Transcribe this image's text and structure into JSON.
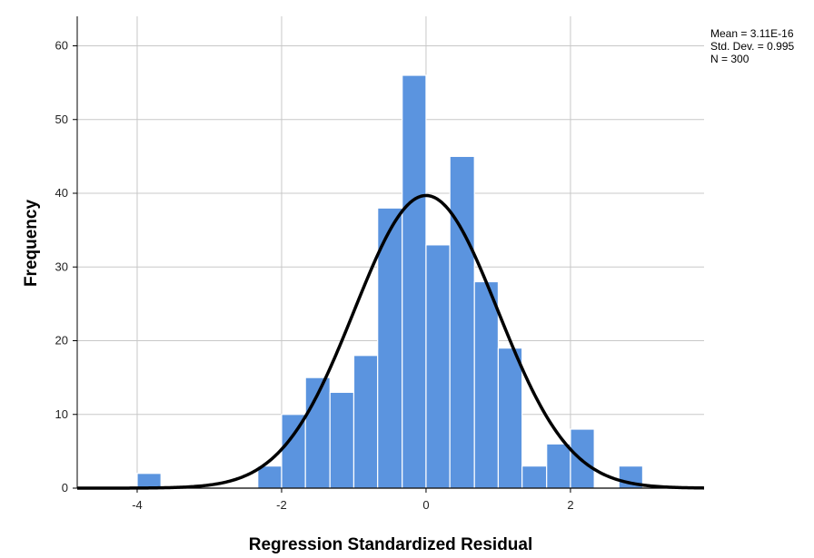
{
  "chart_data": {
    "type": "bar",
    "subtype": "histogram",
    "xlabel": "Regression Standardized Residual",
    "ylabel": "Frequency",
    "xlim": [
      -4.83,
      3.85
    ],
    "ylim": [
      0,
      64
    ],
    "x_ticks": [
      -4,
      -2,
      0,
      2
    ],
    "x_tick_labels": [
      "-4",
      "-2",
      "0",
      "2"
    ],
    "y_ticks": [
      0,
      10,
      20,
      30,
      40,
      50,
      60
    ],
    "y_tick_labels": [
      "0",
      "10",
      "20",
      "30",
      "40",
      "50",
      "60"
    ],
    "grid": true,
    "bin_width": 0.33,
    "bins": [
      {
        "start": -4.0,
        "end": -3.67,
        "value": 2
      },
      {
        "start": -2.33,
        "end": -2.0,
        "value": 3
      },
      {
        "start": -2.0,
        "end": -1.67,
        "value": 10
      },
      {
        "start": -1.67,
        "end": -1.33,
        "value": 15
      },
      {
        "start": -1.33,
        "end": -1.0,
        "value": 13
      },
      {
        "start": -1.0,
        "end": -0.67,
        "value": 18
      },
      {
        "start": -0.67,
        "end": -0.33,
        "value": 38
      },
      {
        "start": -0.33,
        "end": 0.0,
        "value": 56
      },
      {
        "start": 0.0,
        "end": 0.33,
        "value": 33
      },
      {
        "start": 0.33,
        "end": 0.67,
        "value": 45
      },
      {
        "start": 0.67,
        "end": 1.0,
        "value": 28
      },
      {
        "start": 1.0,
        "end": 1.33,
        "value": 19
      },
      {
        "start": 1.33,
        "end": 1.67,
        "value": 3
      },
      {
        "start": 1.67,
        "end": 2.0,
        "value": 6
      },
      {
        "start": 2.0,
        "end": 2.33,
        "value": 8
      },
      {
        "start": 2.67,
        "end": 3.0,
        "value": 3
      }
    ],
    "normal_curve": {
      "mean": 0.0,
      "std_dev": 0.995,
      "n": 300
    },
    "stats_box": [
      "Mean = 3.11E-16",
      "Std. Dev. = 0.995",
      "N = 300"
    ],
    "legend_position": "top-right"
  },
  "colors": {
    "bar_fill": "#5B94DF",
    "bar_stroke": "#ffffff",
    "curve": "#000000",
    "grid": "#c8c8c8",
    "axis": "#000000",
    "background": "#ffffff"
  }
}
